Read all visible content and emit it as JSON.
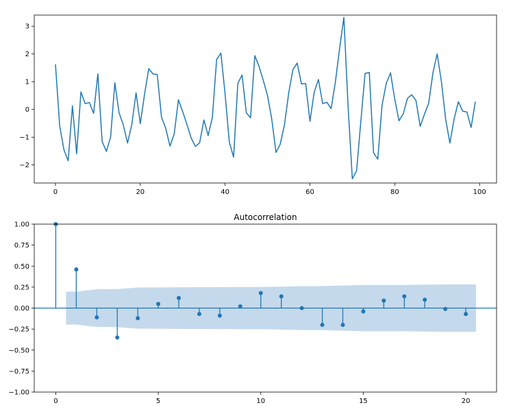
{
  "chart_data": [
    {
      "type": "line",
      "title": "",
      "xlabel": "",
      "ylabel": "",
      "xlim": [
        -5,
        104
      ],
      "ylim": [
        -2.65,
        3.4
      ],
      "xticks": [
        0,
        20,
        40,
        60,
        80,
        100
      ],
      "yticks": [
        -2,
        -1,
        0,
        1,
        2,
        3
      ],
      "color": "#1f77b4",
      "series": [
        {
          "x": [
            0,
            1,
            2,
            3,
            4,
            5,
            6,
            7,
            8,
            9,
            10,
            11,
            12,
            13,
            14,
            15,
            16,
            17,
            18,
            19,
            20,
            21,
            22,
            23,
            24,
            25,
            26,
            27,
            28,
            29,
            30,
            31,
            32,
            33,
            34,
            35,
            36,
            37,
            38,
            39,
            40,
            41,
            42,
            43,
            44,
            45,
            46,
            47,
            48,
            49,
            50,
            51,
            52,
            53,
            54,
            55,
            56,
            57,
            58,
            59,
            60,
            61,
            62,
            63,
            64,
            65,
            66,
            67,
            68,
            69,
            70,
            71,
            72,
            73,
            74,
            75,
            76,
            77,
            78,
            79,
            80,
            81,
            82,
            83,
            84,
            85,
            86,
            87,
            88,
            89,
            90,
            91,
            92,
            93,
            94,
            95,
            96,
            97,
            98,
            99
          ],
          "values": [
            1.63,
            -0.6,
            -1.45,
            -1.85,
            0.13,
            -1.6,
            0.63,
            0.21,
            0.25,
            -0.14,
            1.28,
            -1.15,
            -1.51,
            -1.0,
            0.96,
            -0.12,
            -0.56,
            -1.21,
            -0.55,
            0.6,
            -0.51,
            0.54,
            1.47,
            1.28,
            1.26,
            -0.27,
            -0.68,
            -1.32,
            -0.88,
            0.35,
            -0.08,
            -0.54,
            -1.03,
            -1.33,
            -1.2,
            -0.38,
            -0.94,
            -0.28,
            1.8,
            2.03,
            0.55,
            -1.18,
            -1.72,
            0.94,
            1.24,
            -0.12,
            -0.3,
            1.94,
            1.55,
            1.05,
            0.5,
            -0.35,
            -1.55,
            -1.25,
            -0.55,
            0.6,
            1.44,
            1.67,
            0.92,
            0.93,
            -0.43,
            0.62,
            1.08,
            0.21,
            0.26,
            0.03,
            0.99,
            2.2,
            3.32,
            0.1,
            -2.5,
            -2.21,
            -0.43,
            1.3,
            1.33,
            -1.56,
            -1.79,
            0.15,
            0.94,
            1.32,
            0.37,
            -0.41,
            -0.16,
            0.4,
            0.53,
            0.32,
            -0.61,
            -0.17,
            0.22,
            1.32,
            2.0,
            1.0,
            -0.35,
            -1.21,
            -0.34,
            0.28,
            -0.06,
            -0.09,
            -0.65,
            0.28
          ]
        }
      ]
    },
    {
      "type": "stem",
      "title": "Autocorrelation",
      "xlabel": "",
      "ylabel": "",
      "xlim": [
        -1.05,
        21.5
      ],
      "ylim": [
        -1.0,
        1.0
      ],
      "xticks": [
        0,
        5,
        10,
        15,
        20
      ],
      "yticks": [
        -1.0,
        -0.75,
        -0.5,
        -0.25,
        0.0,
        0.25,
        0.5,
        0.75,
        1.0
      ],
      "ytick_labels": [
        "−1.00",
        "−0.75",
        "−0.50",
        "−0.25",
        "0.00",
        "0.25",
        "0.50",
        "0.75",
        "1.00"
      ],
      "color": "#1f77b4",
      "confidence_color": "#c5d9ec",
      "lags": [
        0,
        1,
        2,
        3,
        4,
        5,
        6,
        7,
        8,
        9,
        10,
        11,
        12,
        13,
        14,
        15,
        16,
        17,
        18,
        19,
        20
      ],
      "values": [
        1.0,
        0.46,
        -0.11,
        -0.35,
        -0.12,
        0.05,
        0.12,
        -0.07,
        -0.09,
        0.02,
        0.18,
        0.14,
        0.0,
        -0.2,
        -0.2,
        -0.04,
        0.09,
        0.14,
        0.1,
        -0.01,
        -0.07
      ],
      "confidence_band": {
        "x": [
          0.5,
          1,
          2,
          3,
          4,
          5,
          6,
          7,
          8,
          9,
          10,
          11,
          12,
          13,
          14,
          15,
          16,
          17,
          18,
          19,
          20,
          20.5
        ],
        "upper": [
          0.196,
          0.196,
          0.225,
          0.226,
          0.245,
          0.246,
          0.248,
          0.249,
          0.25,
          0.251,
          0.251,
          0.255,
          0.262,
          0.262,
          0.269,
          0.275,
          0.276,
          0.276,
          0.28,
          0.282,
          0.282,
          0.282
        ],
        "lower": [
          -0.196,
          -0.196,
          -0.225,
          -0.226,
          -0.245,
          -0.246,
          -0.248,
          -0.249,
          -0.25,
          -0.251,
          -0.251,
          -0.255,
          -0.262,
          -0.262,
          -0.269,
          -0.275,
          -0.276,
          -0.276,
          -0.28,
          -0.282,
          -0.282,
          -0.282
        ]
      }
    }
  ]
}
